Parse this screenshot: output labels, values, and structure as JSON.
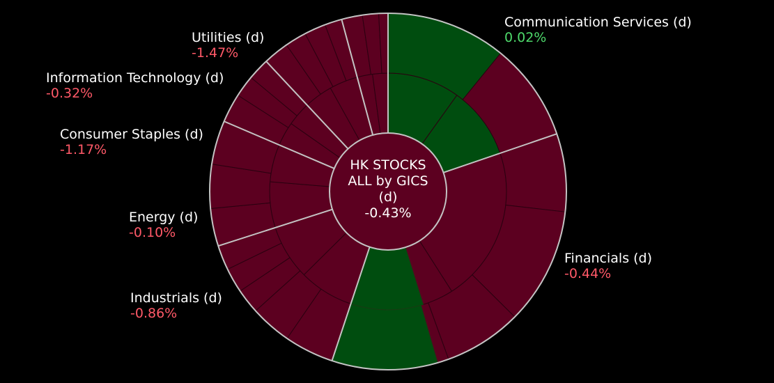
{
  "colors": {
    "positive": "#004d0f",
    "negative": "#5c0020",
    "separator": "#c4c4c4",
    "positive_text": "#4ed96b",
    "negative_text": "#ff5968"
  },
  "chart_data": {
    "type": "sunburst",
    "center": {
      "line1": "HK STOCKS",
      "line2": "ALL by GICS",
      "line3": "(d)",
      "change": "-0.43%"
    },
    "sectors": [
      {
        "name": "Communication Services (d)",
        "change": "0.02%",
        "sign": "positive",
        "weight": 16.5
      },
      {
        "name": "Financials (d)",
        "change": "-0.44%",
        "sign": "negative",
        "weight": 29.5
      },
      {
        "name": "Industrials (d)",
        "change": "-0.86%",
        "sign": "negative",
        "weight": 12.5
      },
      {
        "name": "Energy (d)",
        "change": "-0.10%",
        "sign": "negative",
        "weight": 9.5
      },
      {
        "name": "Consumer Staples (d)",
        "change": "-1.17%",
        "sign": "negative",
        "weight": 5.5
      },
      {
        "name": "Information Technology (d)",
        "change": "-0.32%",
        "sign": "negative",
        "weight": 6.5
      },
      {
        "name": "Utilities (d)",
        "change": "-1.47%",
        "sign": "negative",
        "weight": 3.5
      }
    ]
  }
}
